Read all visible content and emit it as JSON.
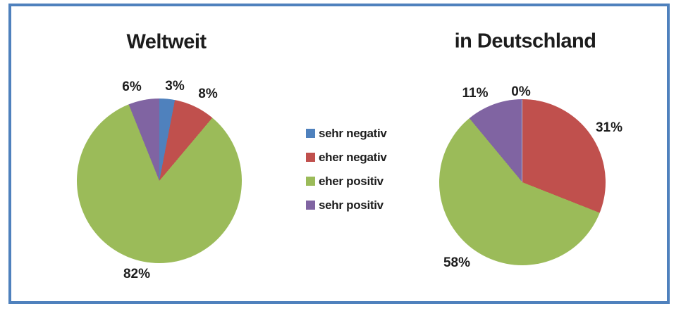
{
  "page": {
    "background": "#ffffff",
    "border_color": "#4f81bd"
  },
  "legend": {
    "items": [
      {
        "label": "sehr negativ",
        "color": "#4F81BD"
      },
      {
        "label": "eher negativ",
        "color": "#C0504D"
      },
      {
        "label": "eher positiv",
        "color": "#9BBB59"
      },
      {
        "label": "sehr positiv",
        "color": "#8064A2"
      }
    ]
  },
  "chart_data": [
    {
      "type": "pie",
      "title": "Weltweit",
      "categories": [
        "sehr negativ",
        "eher negativ",
        "eher positiv",
        "sehr positiv"
      ],
      "values": [
        3,
        8,
        82,
        6
      ],
      "unit": "%",
      "labels": [
        "3%",
        "8%",
        "82%",
        "6%"
      ],
      "colors": [
        "#4F81BD",
        "#C0504D",
        "#9BBB59",
        "#8064A2"
      ],
      "start_angle_deg": 0,
      "direction": "clockwise",
      "legend_position": "center-between-charts"
    },
    {
      "type": "pie",
      "title": "in Deutschland",
      "categories": [
        "sehr negativ",
        "eher negativ",
        "eher positiv",
        "sehr positiv"
      ],
      "values": [
        0,
        31,
        58,
        11
      ],
      "unit": "%",
      "labels": [
        "0%",
        "31%",
        "58%",
        "11%"
      ],
      "colors": [
        "#4F81BD",
        "#C0504D",
        "#9BBB59",
        "#8064A2"
      ],
      "start_angle_deg": 0,
      "direction": "clockwise",
      "legend_position": "center-between-charts"
    }
  ]
}
